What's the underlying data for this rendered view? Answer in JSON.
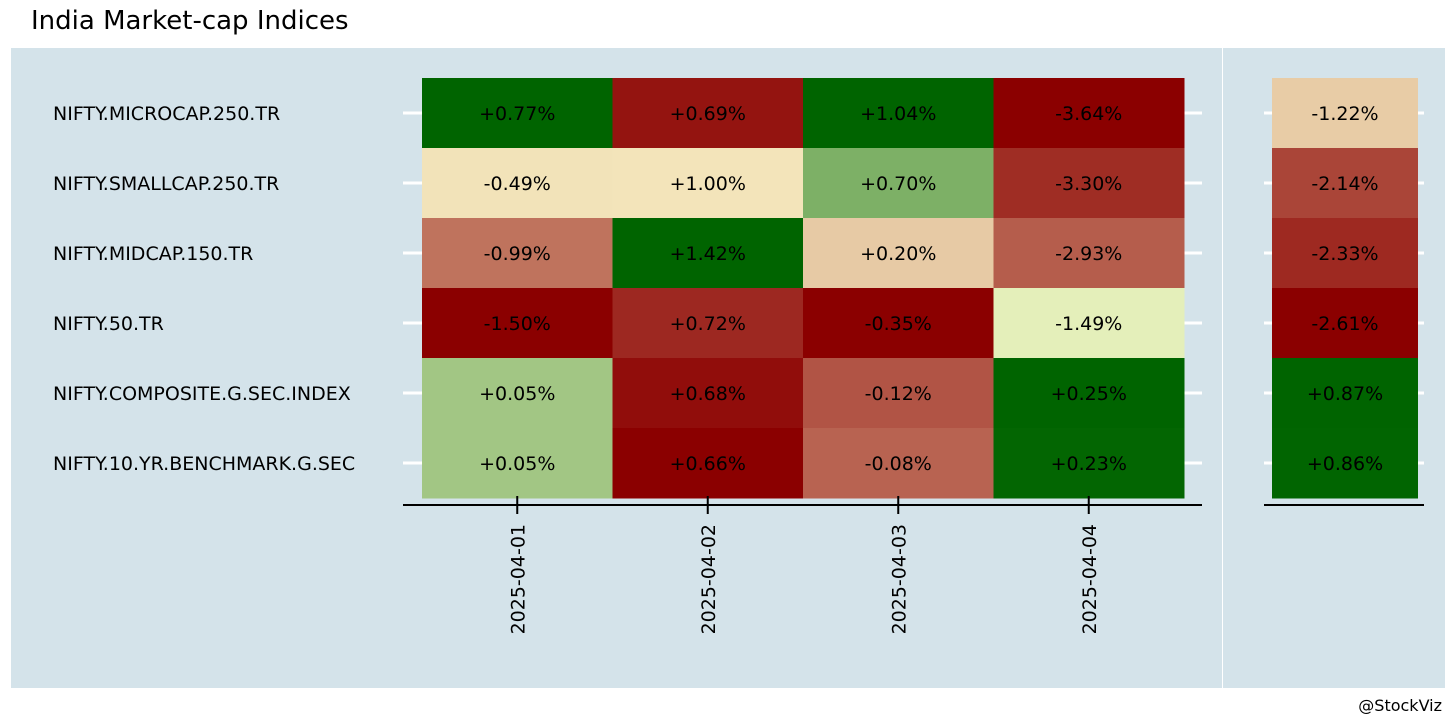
{
  "title": "India Market-cap Indices",
  "credit": "@StockViz",
  "chart_data": [
    {
      "type": "heatmap",
      "title": "India Market-cap Indices",
      "x_categories": [
        "2025-04-01",
        "2025-04-02",
        "2025-04-03",
        "2025-04-04"
      ],
      "y_categories": [
        "NIFTY.MICROCAP.250.TR",
        "NIFTY.SMALLCAP.250.TR",
        "NIFTY.MIDCAP.150.TR",
        "NIFTY.50.TR",
        "NIFTY.COMPOSITE.G.SEC.INDEX",
        "NIFTY.10.YR.BENCHMARK.G.SEC"
      ],
      "values": [
        [
          0.77,
          0.69,
          1.04,
          -3.64
        ],
        [
          -0.49,
          1.0,
          0.7,
          -3.3
        ],
        [
          -0.99,
          1.42,
          0.2,
          -2.93
        ],
        [
          -1.5,
          0.72,
          -0.35,
          -1.49
        ],
        [
          0.05,
          0.68,
          -0.12,
          0.25
        ],
        [
          0.05,
          0.66,
          -0.08,
          0.23
        ]
      ],
      "labels": [
        [
          "+0.77%",
          "+0.69%",
          "+1.04%",
          "-3.64%"
        ],
        [
          "-0.49%",
          "+1.00%",
          "+0.70%",
          "-3.30%"
        ],
        [
          "-0.99%",
          "+1.42%",
          "+0.20%",
          "-2.93%"
        ],
        [
          "-1.50%",
          "+0.72%",
          "-0.35%",
          "-1.49%"
        ],
        [
          "+0.05%",
          "+0.68%",
          "-0.12%",
          "+0.25%"
        ],
        [
          "+0.05%",
          "+0.66%",
          "-0.08%",
          "+0.23%"
        ]
      ],
      "color_scale": {
        "negative": "#8b0000",
        "neutral": "#ffffd0",
        "positive": "#006400"
      },
      "color_scaling": "per column",
      "xlabel": "",
      "ylabel": ""
    },
    {
      "type": "heatmap",
      "y_categories": [
        "NIFTY.MICROCAP.250.TR",
        "NIFTY.SMALLCAP.250.TR",
        "NIFTY.MIDCAP.150.TR",
        "NIFTY.50.TR",
        "NIFTY.COMPOSITE.G.SEC.INDEX",
        "NIFTY.10.YR.BENCHMARK.G.SEC"
      ],
      "values": [
        -1.22,
        -2.14,
        -2.33,
        -2.61,
        0.87,
        0.86
      ],
      "labels": [
        "-1.22%",
        "-2.14%",
        "-2.33%",
        "-2.61%",
        "+0.87%",
        "+0.86%"
      ],
      "color_scale": {
        "negative": "#8b0000",
        "neutral": "#ffffd0",
        "positive": "#006400"
      },
      "xlabel": "",
      "ylabel": ""
    }
  ],
  "colors": {
    "panel_background": "#d4e3ea",
    "grid_line": "#ffffff",
    "axis_line": "#000000"
  }
}
